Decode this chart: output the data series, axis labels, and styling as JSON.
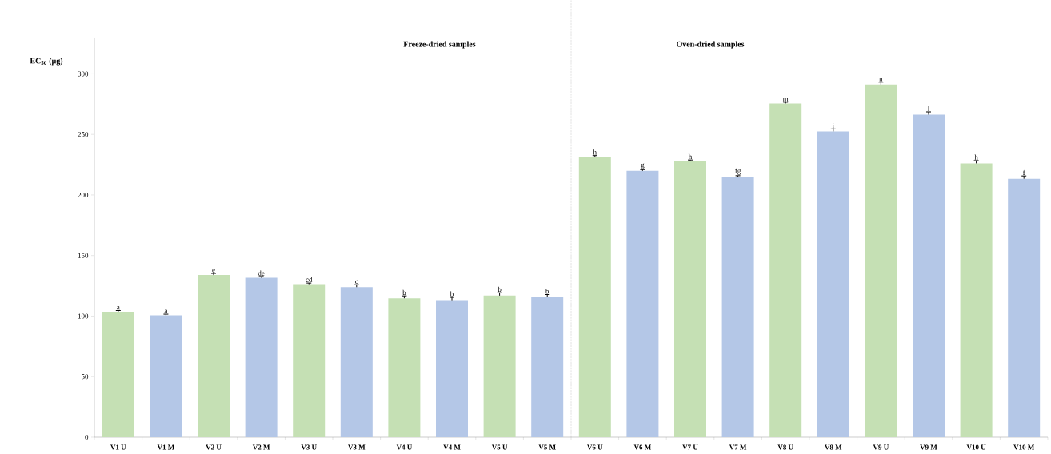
{
  "chart_data": {
    "type": "bar",
    "ylabel": "**EC$_{50}$ (µg)**",
    "categories": [
      "V1  U",
      "V1  M",
      "V2  U",
      "V2  M",
      "V3  U",
      "V3  M",
      "V4  U",
      "V4  M",
      "V5  U",
      "V5  M",
      "V6  U",
      "V6  M",
      "V7  U",
      "V7  M",
      "V8  U",
      "V8  M",
      "V9  U",
      "V9  M",
      "V10  U",
      "V10  M"
    ],
    "values": [
      103.6,
      100.6,
      133.9,
      131.7,
      126.3,
      123.9,
      114.7,
      113.1,
      116.9,
      115.8,
      231.5,
      219.9,
      227.9,
      214.9,
      275.6,
      252.5,
      291.2,
      266.3,
      226.1,
      213.4
    ],
    "errors": [
      1,
      1,
      1.4,
      1,
      1,
      2,
      2,
      2.4,
      2.4,
      2,
      1,
      1,
      1,
      1,
      1,
      2,
      2,
      2.3,
      2.3,
      2.3
    ],
    "value_labels": [
      "a",
      "a",
      "e",
      "de",
      "cd",
      "c",
      "b",
      "b",
      "b",
      "b",
      "h",
      "g",
      "h",
      "fg",
      "m",
      "i",
      "n",
      "l",
      "h",
      "f"
    ],
    "colors": [
      "#c5e0b4",
      "#b4c7e7",
      "#c5e0b4",
      "#b4c7e7",
      "#c5e0b4",
      "#b4c7e7",
      "#c5e0b4",
      "#b4c7e7",
      "#c5e0b4",
      "#b4c7e7",
      "#c5e0b4",
      "#b4c7e7",
      "#c5e0b4",
      "#b4c7e7",
      "#c5e0b4",
      "#b4c7e7",
      "#c5e0b4",
      "#b4c7e7",
      "#c5e0b4",
      "#b4c7e7"
    ],
    "ylim": [
      0,
      330
    ],
    "yticks": [
      0,
      50,
      100,
      150,
      200,
      250,
      300
    ],
    "annotations": [
      "**Freeze-dried samples**",
      "**Oven-dried samples**"
    ],
    "grid": false
  }
}
